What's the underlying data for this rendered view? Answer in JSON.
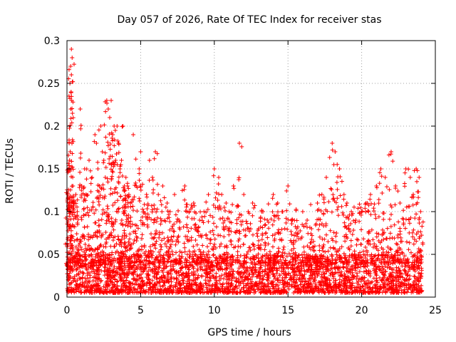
{
  "chart_data": {
    "type": "scatter",
    "title": "Day 057 of 2026, Rate Of TEC Index for receiver stas",
    "xlabel": "GPS time / hours",
    "ylabel": "ROTI / TECUs",
    "xlim": [
      0,
      25
    ],
    "ylim": [
      0,
      0.3
    ],
    "x_ticks": [
      0,
      5,
      10,
      15,
      20,
      25
    ],
    "y_ticks": [
      0,
      0.05,
      0.1,
      0.15,
      0.2,
      0.25,
      0.3
    ],
    "x_tick_labels": [
      "0",
      "5",
      "10",
      "15",
      "20",
      "25"
    ],
    "y_tick_labels": [
      "0",
      "0.05",
      "0.1",
      "0.15",
      "0.2",
      "0.25",
      "0.3"
    ],
    "grid": true,
    "marker": "plus",
    "color": "#ff0000",
    "series": [
      {
        "x": [
          0.05,
          0.1,
          0.15,
          0.2,
          0.25,
          0.3,
          0.35,
          0.3,
          0.28,
          0.32,
          0.26,
          0.22,
          0.18,
          0.12,
          0.08,
          0.4,
          0.5,
          0.6,
          0.7,
          0.9,
          1.0,
          1.2,
          1.3,
          1.5,
          1.7,
          1.9,
          2.0,
          2.1,
          2.2,
          2.3,
          2.4,
          2.5,
          2.6,
          2.7,
          2.8,
          2.9,
          3.0,
          3.1,
          3.2,
          3.3,
          3.4,
          3.5,
          3.6,
          3.7,
          3.8,
          3.9,
          4.0,
          4.1,
          4.2,
          4.3,
          4.5,
          4.7,
          4.9,
          5.0,
          5.2,
          5.4,
          5.6,
          5.8,
          6.0,
          6.2,
          6.5,
          6.8,
          7.0,
          7.3,
          7.6,
          8.0,
          8.3,
          8.6,
          9.0,
          9.3,
          9.6,
          10.0,
          10.3,
          10.5,
          10.8,
          11.0,
          11.3,
          11.7,
          12.0,
          12.3,
          12.6,
          13.0,
          13.3,
          13.6,
          14.0,
          14.3,
          14.6,
          15.0,
          15.3,
          15.6,
          16.0,
          16.3,
          16.6,
          17.0,
          17.3,
          17.6,
          18.0,
          18.2,
          18.5,
          18.8,
          19.0,
          19.3,
          19.6,
          20.0,
          20.3,
          20.6,
          21.0,
          21.3,
          21.6,
          22.0,
          22.3,
          22.6,
          23.0,
          23.3,
          23.5,
          23.7,
          23.9,
          24.0
        ],
        "y": [
          0.12,
          0.15,
          0.18,
          0.25,
          0.27,
          0.29,
          0.28,
          0.26,
          0.24,
          0.23,
          0.22,
          0.17,
          0.16,
          0.1,
          0.09,
          0.13,
          0.11,
          0.12,
          0.1,
          0.22,
          0.13,
          0.15,
          0.12,
          0.16,
          0.14,
          0.19,
          0.18,
          0.15,
          0.13,
          0.2,
          0.17,
          0.16,
          0.14,
          0.23,
          0.22,
          0.21,
          0.23,
          0.19,
          0.2,
          0.16,
          0.2,
          0.18,
          0.15,
          0.16,
          0.2,
          0.13,
          0.14,
          0.13,
          0.12,
          0.11,
          0.19,
          0.13,
          0.15,
          0.17,
          0.1,
          0.12,
          0.16,
          0.14,
          0.17,
          0.12,
          0.13,
          0.11,
          0.1,
          0.12,
          0.09,
          0.13,
          0.1,
          0.11,
          0.09,
          0.1,
          0.12,
          0.15,
          0.14,
          0.12,
          0.11,
          0.1,
          0.13,
          0.18,
          0.12,
          0.1,
          0.11,
          0.08,
          0.1,
          0.09,
          0.12,
          0.11,
          0.1,
          0.13,
          0.09,
          0.08,
          0.1,
          0.09,
          0.08,
          0.11,
          0.12,
          0.14,
          0.18,
          0.17,
          0.15,
          0.12,
          0.11,
          0.1,
          0.09,
          0.1,
          0.11,
          0.12,
          0.13,
          0.15,
          0.14,
          0.17,
          0.13,
          0.11,
          0.15,
          0.14,
          0.12,
          0.15,
          0.14,
          0.1
        ]
      }
    ],
    "dense_band": {
      "ymin": 0.005,
      "ymax": 0.05,
      "xmin": 0,
      "xmax": 24.1
    }
  }
}
